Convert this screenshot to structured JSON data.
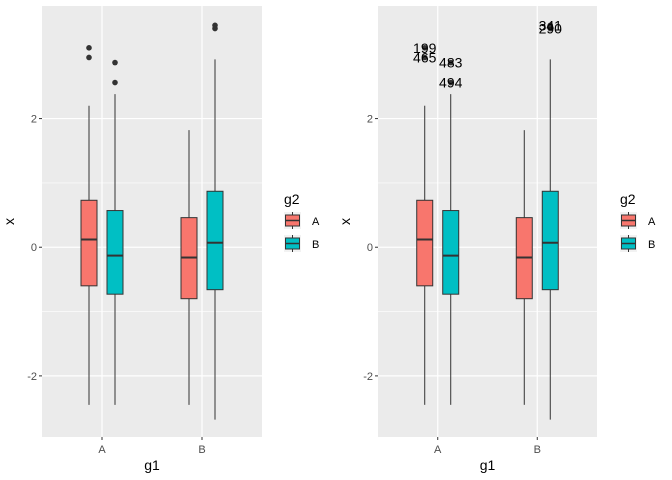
{
  "chart_data": [
    {
      "type": "box",
      "xlabel": "g1",
      "ylabel": "x",
      "categories": [
        "A",
        "B"
      ],
      "ylim": [
        -2.95,
        3.75
      ],
      "yticks": [
        -2,
        0,
        2
      ],
      "ytick_labels": [
        "-2",
        "0",
        "2"
      ],
      "grid": true,
      "legend": {
        "title": "g2",
        "position": "right",
        "entries": [
          "A",
          "B"
        ]
      },
      "series": [
        {
          "name": "A",
          "color": "#F8766D",
          "boxes": [
            {
              "category": "A",
              "lower_whisker": -2.45,
              "q1": -0.6,
              "median": 0.12,
              "q3": 0.73,
              "upper_whisker": 2.2,
              "outliers": [
                2.95,
                3.1
              ]
            },
            {
              "category": "B",
              "lower_whisker": -2.45,
              "q1": -0.8,
              "median": -0.16,
              "q3": 0.46,
              "upper_whisker": 1.82,
              "outliers": []
            }
          ]
        },
        {
          "name": "B",
          "color": "#00BFC4",
          "boxes": [
            {
              "category": "A",
              "lower_whisker": -2.45,
              "q1": -0.73,
              "median": -0.13,
              "q3": 0.57,
              "upper_whisker": 2.38,
              "outliers": [
                2.56,
                2.87
              ]
            },
            {
              "category": "B",
              "lower_whisker": -2.68,
              "q1": -0.66,
              "median": 0.07,
              "q3": 0.87,
              "upper_whisker": 2.92,
              "outliers": [
                3.4,
                3.45
              ]
            }
          ]
        }
      ],
      "point_labels": []
    },
    {
      "type": "box",
      "xlabel": "g1",
      "ylabel": "x",
      "categories": [
        "A",
        "B"
      ],
      "ylim": [
        -2.95,
        3.75
      ],
      "yticks": [
        -2,
        0,
        2
      ],
      "ytick_labels": [
        "-2",
        "0",
        "2"
      ],
      "grid": true,
      "legend": {
        "title": "g2",
        "position": "right",
        "entries": [
          "A",
          "B"
        ]
      },
      "series": [
        {
          "name": "A",
          "color": "#F8766D",
          "boxes": [
            {
              "category": "A",
              "lower_whisker": -2.45,
              "q1": -0.6,
              "median": 0.12,
              "q3": 0.73,
              "upper_whisker": 2.2,
              "outliers": [
                2.95,
                3.1
              ]
            },
            {
              "category": "B",
              "lower_whisker": -2.45,
              "q1": -0.8,
              "median": -0.16,
              "q3": 0.46,
              "upper_whisker": 1.82,
              "outliers": []
            }
          ]
        },
        {
          "name": "B",
          "color": "#00BFC4",
          "boxes": [
            {
              "category": "A",
              "lower_whisker": -2.45,
              "q1": -0.73,
              "median": -0.13,
              "q3": 0.57,
              "upper_whisker": 2.38,
              "outliers": [
                2.56,
                2.87
              ]
            },
            {
              "category": "B",
              "lower_whisker": -2.68,
              "q1": -0.66,
              "median": 0.07,
              "q3": 0.87,
              "upper_whisker": 2.92,
              "outliers": [
                3.4,
                3.45
              ]
            }
          ]
        }
      ],
      "point_labels": [
        {
          "text": "199",
          "category": "A",
          "series": "A",
          "y": 3.1
        },
        {
          "text": "465",
          "category": "A",
          "series": "A",
          "y": 2.95
        },
        {
          "text": "483",
          "category": "A",
          "series": "B",
          "y": 2.87
        },
        {
          "text": "494",
          "category": "A",
          "series": "B",
          "y": 2.56
        },
        {
          "text": "341",
          "category": "B",
          "series": "B",
          "y": 3.45
        },
        {
          "text": "290",
          "category": "B",
          "series": "B",
          "y": 3.4
        }
      ]
    }
  ]
}
